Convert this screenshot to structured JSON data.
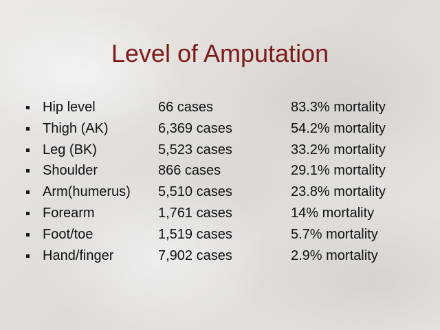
{
  "title": "Level of Amputation",
  "rows": [
    {
      "site": "Hip level",
      "cases": "66 cases",
      "mortality": "83.3% mortality"
    },
    {
      "site": "Thigh (AK)",
      "cases": "6,369 cases",
      "mortality": "54.2% mortality"
    },
    {
      "site": "Leg (BK)",
      "cases": "5,523 cases",
      "mortality": "33.2% mortality"
    },
    {
      "site": "Shoulder",
      "cases": "866 cases",
      "mortality": "29.1% mortality"
    },
    {
      "site": "Arm(humerus)",
      "cases": "5,510 cases",
      "mortality": "23.8% mortality"
    },
    {
      "site": "Forearm",
      "cases": "1,761 cases",
      "mortality": "14% mortality"
    },
    {
      "site": "Foot/toe",
      "cases": "1,519 cases",
      "mortality": "5.7% mortality"
    },
    {
      "site": "Hand/finger",
      "cases": "7,902 cases",
      "mortality": "2.9% mortality"
    }
  ],
  "colors": {
    "title": "#7a1a1a",
    "text": "#111111",
    "background": "#e9e6e3"
  }
}
